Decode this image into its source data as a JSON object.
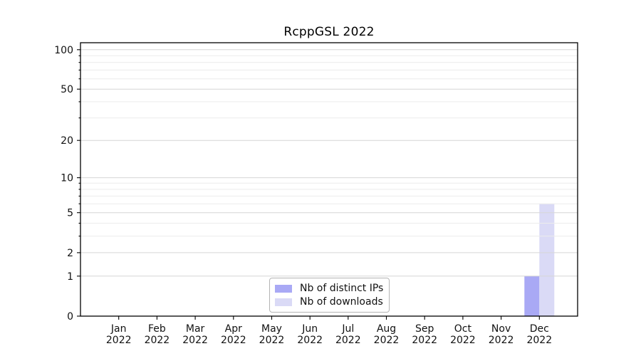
{
  "figure": {
    "background": "#ffffff"
  },
  "chart_data": {
    "type": "bar",
    "title": "RcppGSL 2022",
    "categories": [
      {
        "month": "Jan",
        "year": "2022"
      },
      {
        "month": "Feb",
        "year": "2022"
      },
      {
        "month": "Mar",
        "year": "2022"
      },
      {
        "month": "Apr",
        "year": "2022"
      },
      {
        "month": "May",
        "year": "2022"
      },
      {
        "month": "Jun",
        "year": "2022"
      },
      {
        "month": "Jul",
        "year": "2022"
      },
      {
        "month": "Aug",
        "year": "2022"
      },
      {
        "month": "Sep",
        "year": "2022"
      },
      {
        "month": "Oct",
        "year": "2022"
      },
      {
        "month": "Nov",
        "year": "2022"
      },
      {
        "month": "Dec",
        "year": "2022"
      }
    ],
    "series": [
      {
        "name": "Nb of distinct IPs",
        "color": "#a9a9f5",
        "values": [
          0,
          0,
          0,
          0,
          0,
          0,
          0,
          0,
          0,
          0,
          0,
          1
        ]
      },
      {
        "name": "Nb of downloads",
        "color": "#dadaf6",
        "values": [
          0,
          0,
          0,
          0,
          0,
          0,
          0,
          0,
          0,
          0,
          0,
          6
        ]
      }
    ],
    "yscale": "log1p",
    "ylim": [
      0,
      113
    ],
    "yticks_major": [
      0,
      1,
      2,
      5,
      10,
      20,
      50,
      100
    ],
    "yticks_minor": [
      3,
      4,
      6,
      7,
      8,
      9,
      30,
      40,
      60,
      70,
      80,
      90
    ],
    "grid": "horizontal",
    "grid_above_bars": true,
    "legend_position": "bottom-center-inside",
    "colors": {
      "grid_major": "#d6d6d6",
      "grid_minor": "#ececec",
      "axis": "#000000",
      "text": "#111111"
    }
  }
}
